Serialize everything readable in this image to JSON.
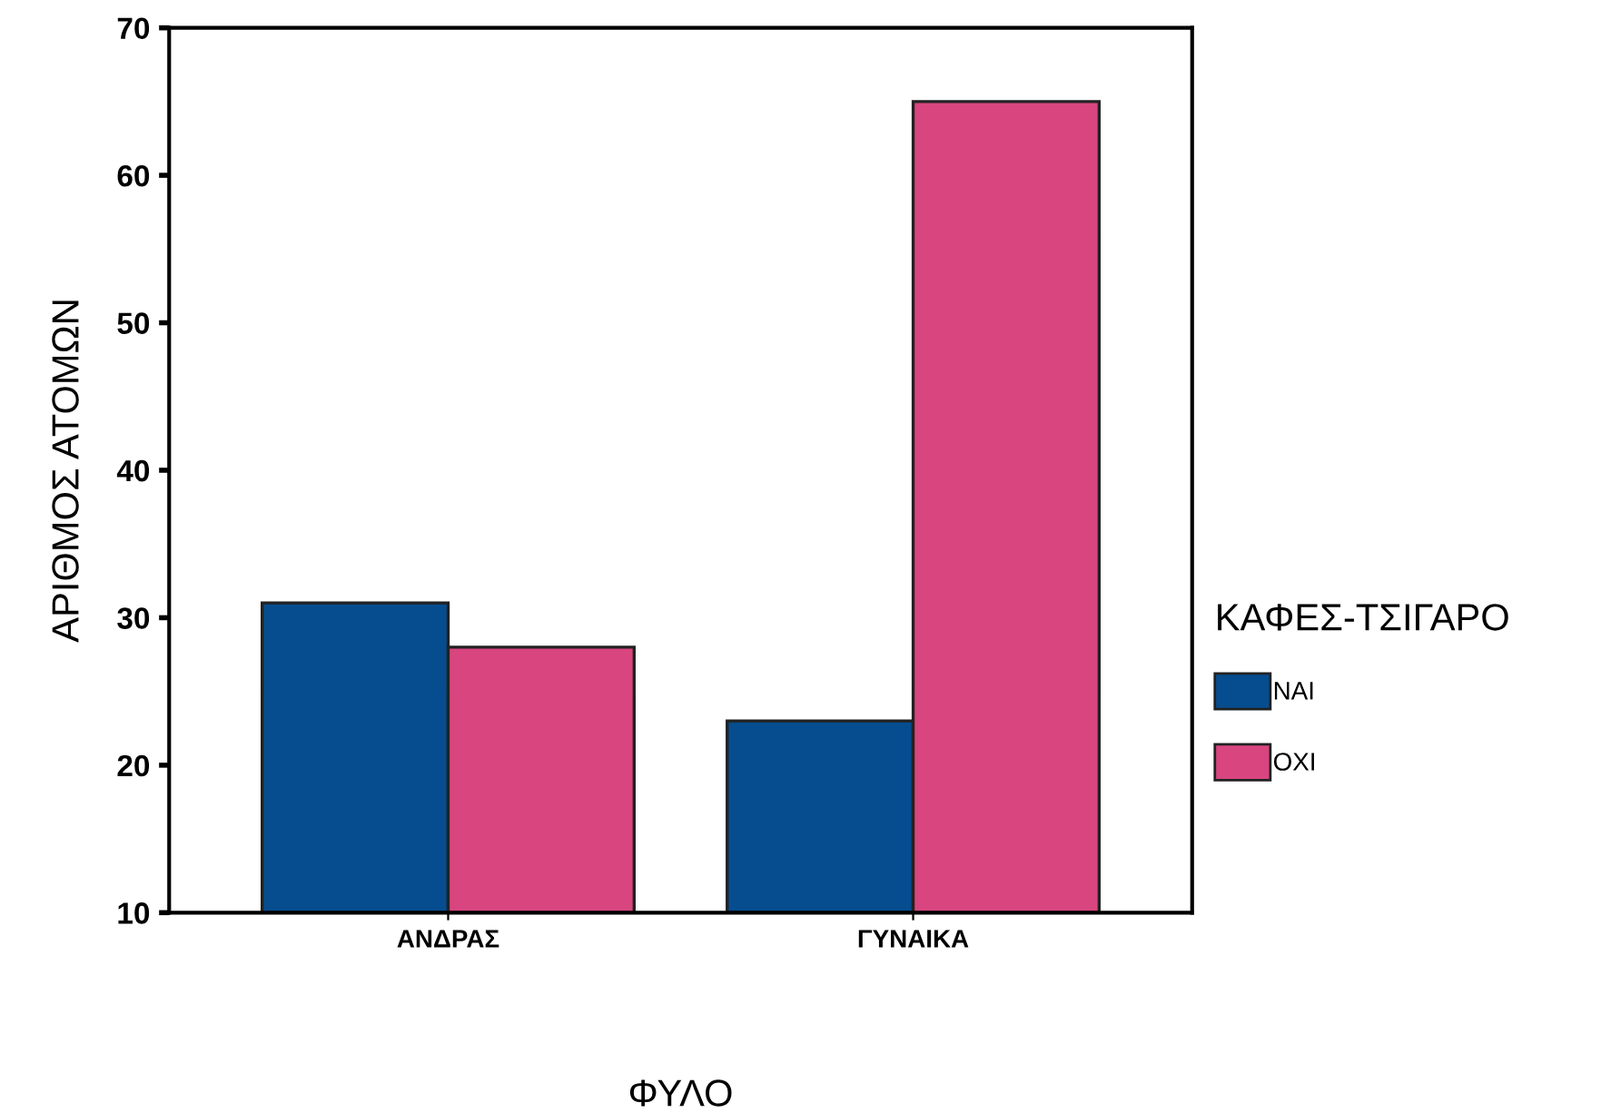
{
  "chart_data": {
    "type": "bar",
    "xlabel": "ΦΥΛΟ",
    "ylabel": "ΑΡΙΘΜΟΣ ΑΤΟΜΩΝ",
    "legend_title": "ΚΑΦΕΣ-ΤΣΙΓΑΡΟ",
    "categories": [
      "ΑΝΔΡΑΣ",
      "ΓΥΝΑΙΚΑ"
    ],
    "series": [
      {
        "name": "ΝΑΙ",
        "color": "#064d8f",
        "values": [
          31,
          23
        ]
      },
      {
        "name": "ΟΧΙ",
        "color": "#d8457f",
        "values": [
          28,
          65
        ]
      }
    ],
    "ylim": [
      10,
      70
    ],
    "yticks": [
      10,
      20,
      30,
      40,
      50,
      60,
      70
    ],
    "grid": false,
    "legend": "right"
  }
}
